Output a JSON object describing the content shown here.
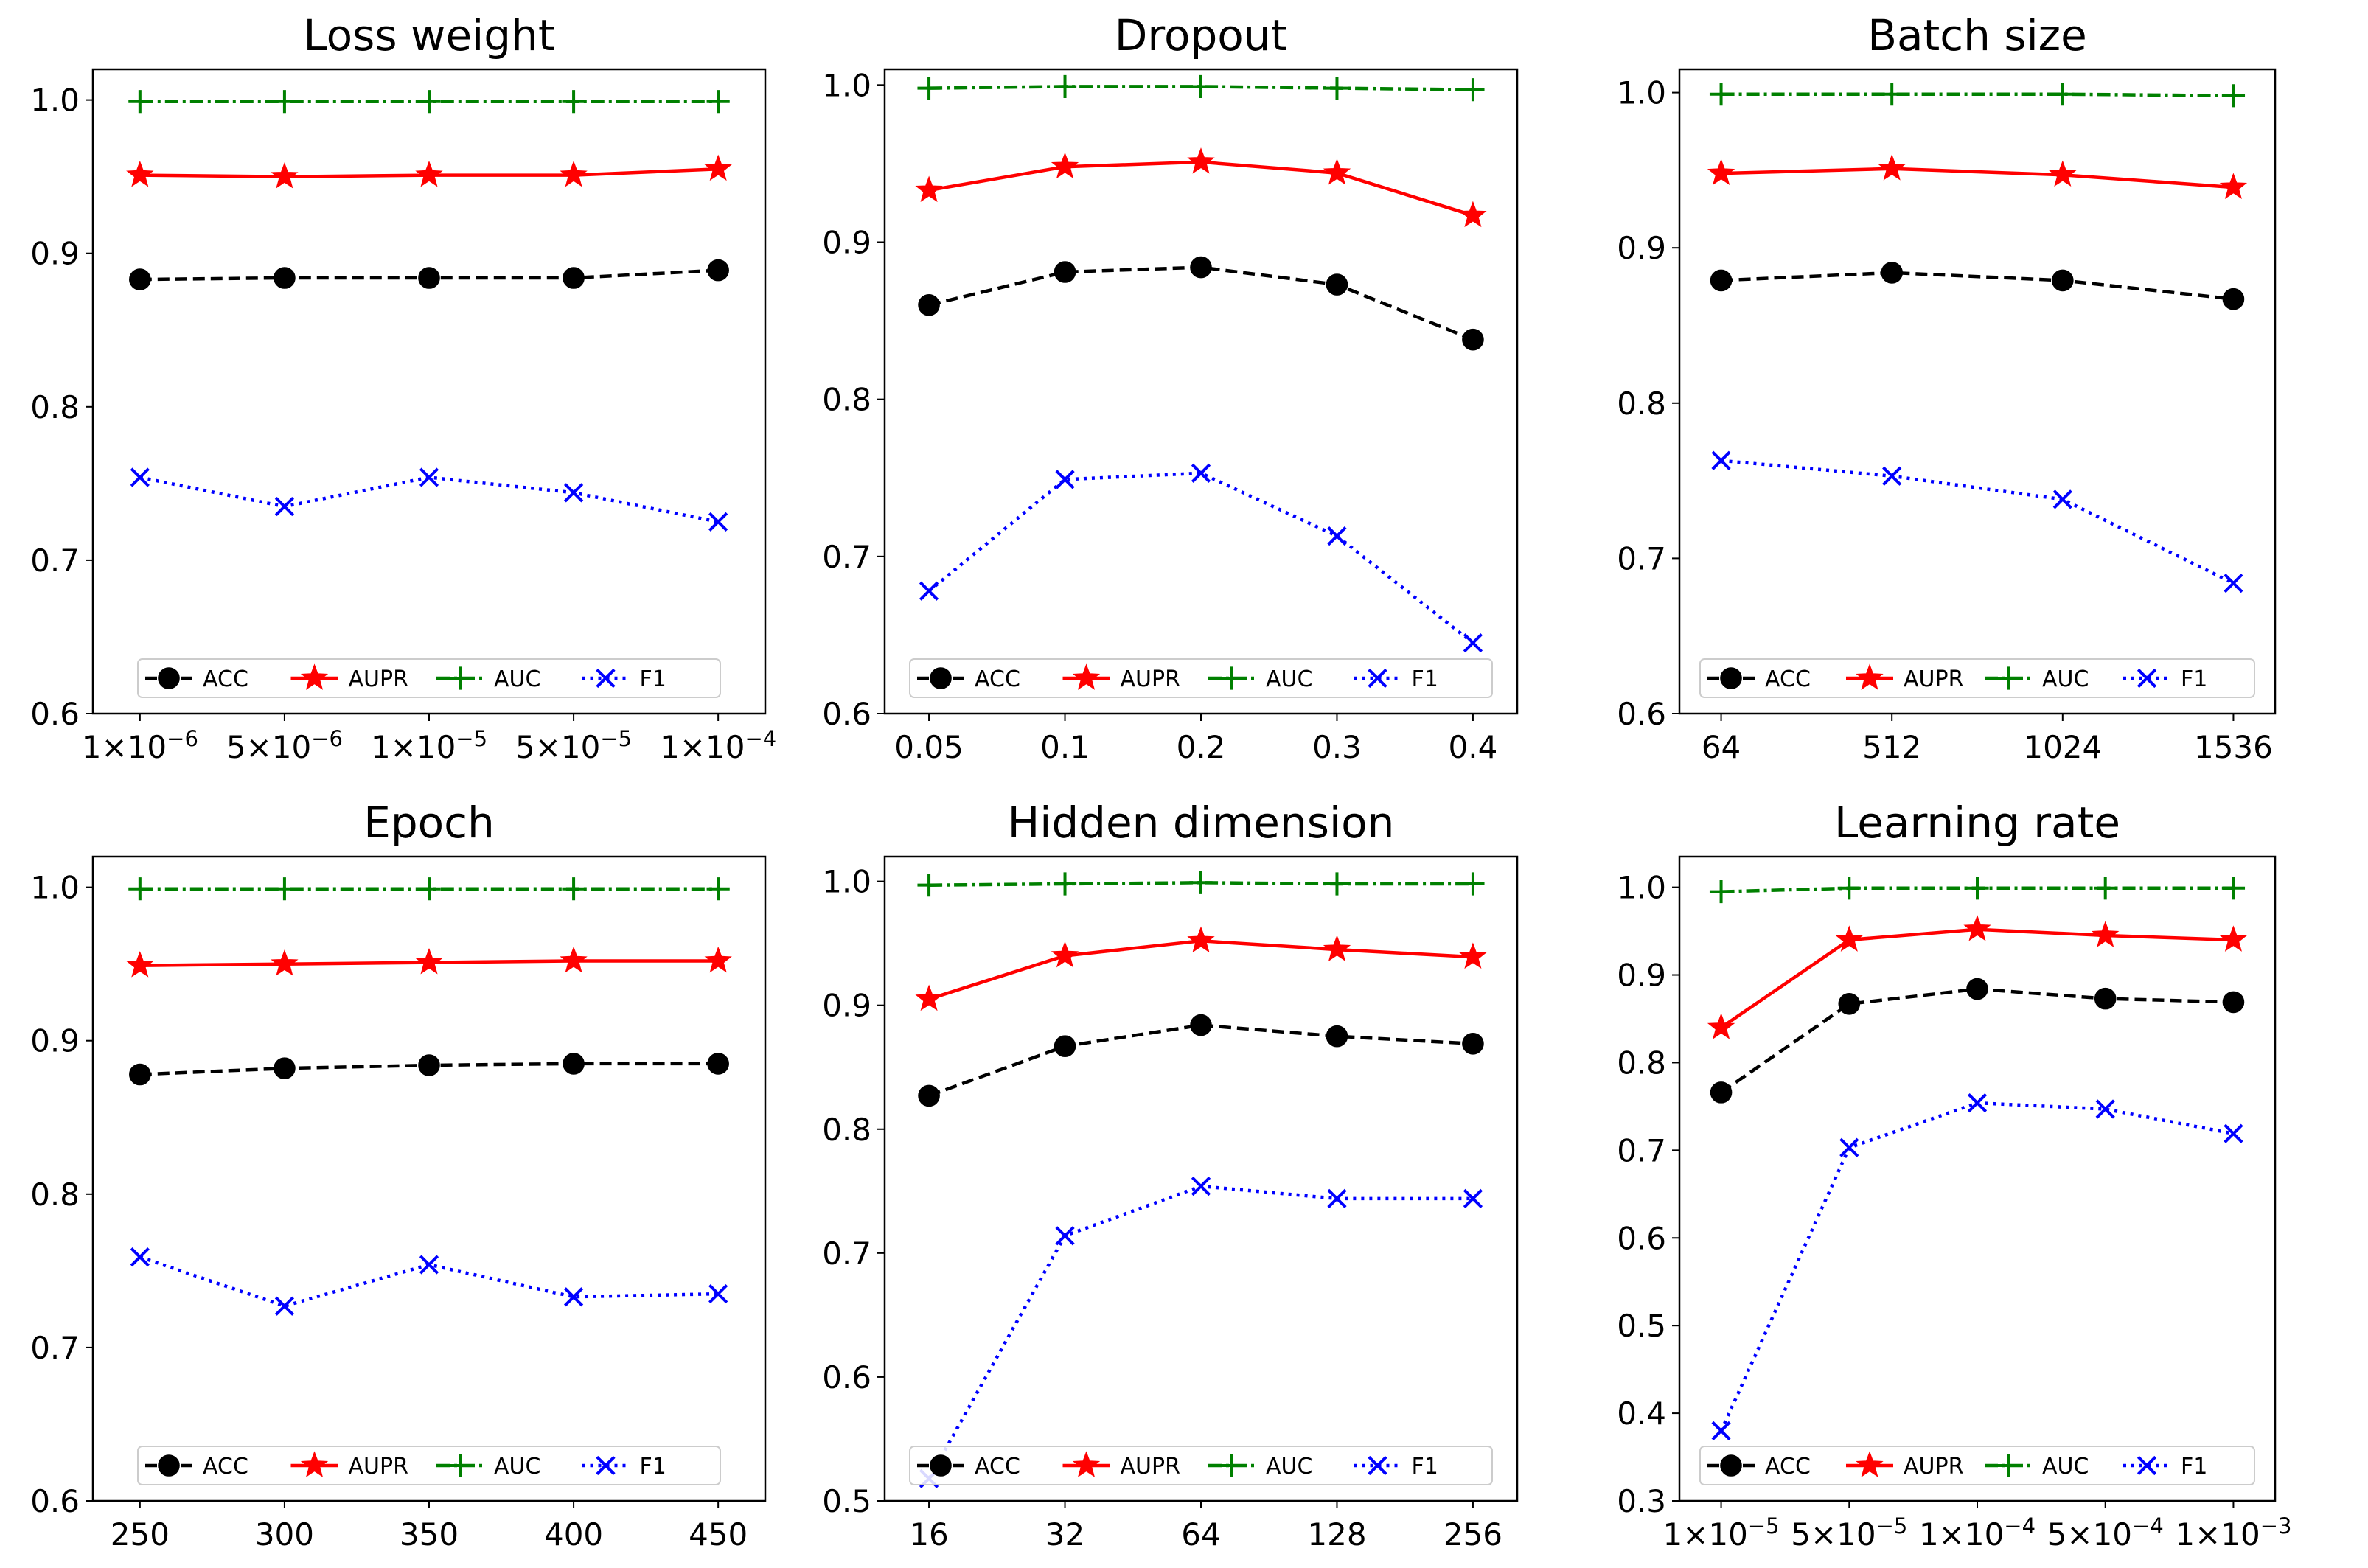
{
  "chart_data": [
    {
      "type": "line",
      "title": "Loss weight",
      "categories": [
        "1×10^-6",
        "5×10^-6",
        "1×10^-5",
        "5×10^-5",
        "1×10^-4"
      ],
      "ylim": [
        0.6,
        1.02
      ],
      "yticks": [
        "0.6",
        "0.7",
        "0.8",
        "0.9",
        "1.0"
      ],
      "series": [
        {
          "name": "ACC",
          "values": [
            0.883,
            0.884,
            0.884,
            0.884,
            0.889
          ]
        },
        {
          "name": "AUPR",
          "values": [
            0.951,
            0.95,
            0.951,
            0.951,
            0.955
          ]
        },
        {
          "name": "AUC",
          "values": [
            0.999,
            0.999,
            0.999,
            0.999,
            0.999
          ]
        },
        {
          "name": "F1",
          "values": [
            0.754,
            0.735,
            0.754,
            0.744,
            0.725
          ]
        }
      ],
      "legend": "bottom-center"
    },
    {
      "type": "line",
      "title": "Dropout",
      "categories": [
        "0.05",
        "0.1",
        "0.2",
        "0.3",
        "0.4"
      ],
      "ylim": [
        0.6,
        1.01
      ],
      "yticks": [
        "0.6",
        "0.7",
        "0.8",
        "0.9",
        "1.0"
      ],
      "series": [
        {
          "name": "ACC",
          "values": [
            0.86,
            0.881,
            0.884,
            0.873,
            0.838
          ]
        },
        {
          "name": "AUPR",
          "values": [
            0.933,
            0.948,
            0.951,
            0.944,
            0.917
          ]
        },
        {
          "name": "AUC",
          "values": [
            0.998,
            0.999,
            0.999,
            0.998,
            0.997
          ]
        },
        {
          "name": "F1",
          "values": [
            0.678,
            0.749,
            0.753,
            0.713,
            0.645
          ]
        }
      ],
      "legend": "bottom-center"
    },
    {
      "type": "line",
      "title": "Batch size",
      "categories": [
        "64",
        "512",
        "1024",
        "1536"
      ],
      "ylim": [
        0.6,
        1.015
      ],
      "yticks": [
        "0.6",
        "0.7",
        "0.8",
        "0.9",
        "1.0"
      ],
      "series": [
        {
          "name": "ACC",
          "values": [
            0.879,
            0.884,
            0.879,
            0.867
          ]
        },
        {
          "name": "AUPR",
          "values": [
            0.948,
            0.951,
            0.947,
            0.939
          ]
        },
        {
          "name": "AUC",
          "values": [
            0.999,
            0.999,
            0.999,
            0.998
          ]
        },
        {
          "name": "F1",
          "values": [
            0.763,
            0.753,
            0.738,
            0.684
          ]
        }
      ],
      "legend": "bottom-center"
    },
    {
      "type": "line",
      "title": "Epoch",
      "categories": [
        "250",
        "300",
        "350",
        "400",
        "450"
      ],
      "ylim": [
        0.6,
        1.02
      ],
      "yticks": [
        "0.6",
        "0.7",
        "0.8",
        "0.9",
        "1.0"
      ],
      "series": [
        {
          "name": "ACC",
          "values": [
            0.878,
            0.882,
            0.884,
            0.885,
            0.885
          ]
        },
        {
          "name": "AUPR",
          "values": [
            0.949,
            0.95,
            0.951,
            0.952,
            0.952
          ]
        },
        {
          "name": "AUC",
          "values": [
            0.999,
            0.999,
            0.999,
            0.999,
            0.999
          ]
        },
        {
          "name": "F1",
          "values": [
            0.759,
            0.727,
            0.754,
            0.733,
            0.735
          ]
        }
      ],
      "legend": "bottom-center"
    },
    {
      "type": "line",
      "title": "Hidden dimension",
      "categories": [
        "16",
        "32",
        "64",
        "128",
        "256"
      ],
      "ylim": [
        0.5,
        1.02
      ],
      "yticks": [
        "0.5",
        "0.6",
        "0.7",
        "0.8",
        "0.9",
        "1.0"
      ],
      "series": [
        {
          "name": "ACC",
          "values": [
            0.827,
            0.867,
            0.884,
            0.875,
            0.869
          ]
        },
        {
          "name": "AUPR",
          "values": [
            0.905,
            0.94,
            0.952,
            0.945,
            0.939
          ]
        },
        {
          "name": "AUC",
          "values": [
            0.997,
            0.998,
            0.999,
            0.998,
            0.998
          ]
        },
        {
          "name": "F1",
          "values": [
            0.518,
            0.714,
            0.754,
            0.744,
            0.744
          ]
        }
      ],
      "legend": "bottom-center"
    },
    {
      "type": "line",
      "title": "Learning rate",
      "categories": [
        "1×10^-5",
        "5×10^-5",
        "1×10^-4",
        "5×10^-4",
        "1×10^-3"
      ],
      "ylim": [
        0.3,
        1.035
      ],
      "yticks": [
        "0.3",
        "0.4",
        "0.5",
        "0.6",
        "0.7",
        "0.8",
        "0.9",
        "1.0"
      ],
      "series": [
        {
          "name": "ACC",
          "values": [
            0.766,
            0.867,
            0.884,
            0.873,
            0.869
          ]
        },
        {
          "name": "AUPR",
          "values": [
            0.84,
            0.94,
            0.952,
            0.945,
            0.94
          ]
        },
        {
          "name": "AUC",
          "values": [
            0.995,
            0.999,
            0.999,
            0.999,
            0.999
          ]
        },
        {
          "name": "F1",
          "values": [
            0.38,
            0.703,
            0.754,
            0.747,
            0.719
          ]
        }
      ],
      "legend": "bottom-center"
    }
  ],
  "series_style": [
    {
      "name": "ACC",
      "color": "#000000",
      "marker": "circle",
      "line": "dashed"
    },
    {
      "name": "AUPR",
      "color": "#ff0000",
      "marker": "star",
      "line": "solid"
    },
    {
      "name": "AUC",
      "color": "#008000",
      "marker": "plus",
      "line": "dashdot"
    },
    {
      "name": "F1",
      "color": "#0000ff",
      "marker": "x",
      "line": "dotted"
    }
  ]
}
